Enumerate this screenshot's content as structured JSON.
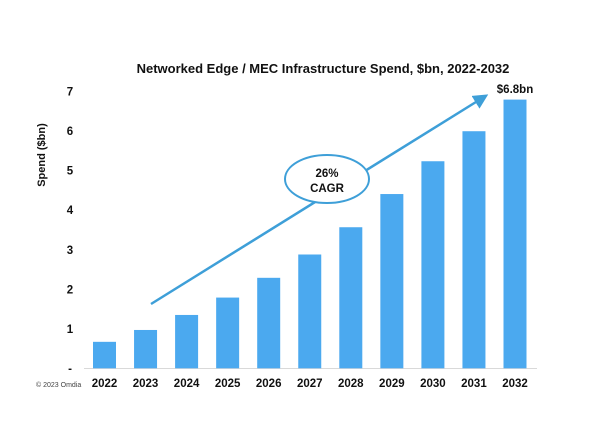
{
  "chart_data": {
    "type": "bar",
    "title": "Networked Edge / MEC Infrastructure Spend, $bn, 2022-2032",
    "ylabel": "Spend ($bn)",
    "xlabel": "",
    "ylim": [
      0,
      7
    ],
    "yticks": [
      "-",
      "1",
      "2",
      "3",
      "4",
      "5",
      "6",
      "7"
    ],
    "categories": [
      "2022",
      "2023",
      "2024",
      "2025",
      "2026",
      "2027",
      "2028",
      "2029",
      "2030",
      "2031",
      "2032"
    ],
    "values": [
      0.67,
      0.97,
      1.35,
      1.79,
      2.29,
      2.88,
      3.57,
      4.41,
      5.24,
      6.0,
      6.8
    ],
    "bar_color": "#4BA9EF",
    "grid": false,
    "annotations": {
      "last_bar_label": "$6.8bn",
      "cagr_line1": "26%",
      "cagr_line2": "CAGR",
      "arrow_color": "#3E9FD8"
    },
    "source": "© 2023 Omdia"
  }
}
